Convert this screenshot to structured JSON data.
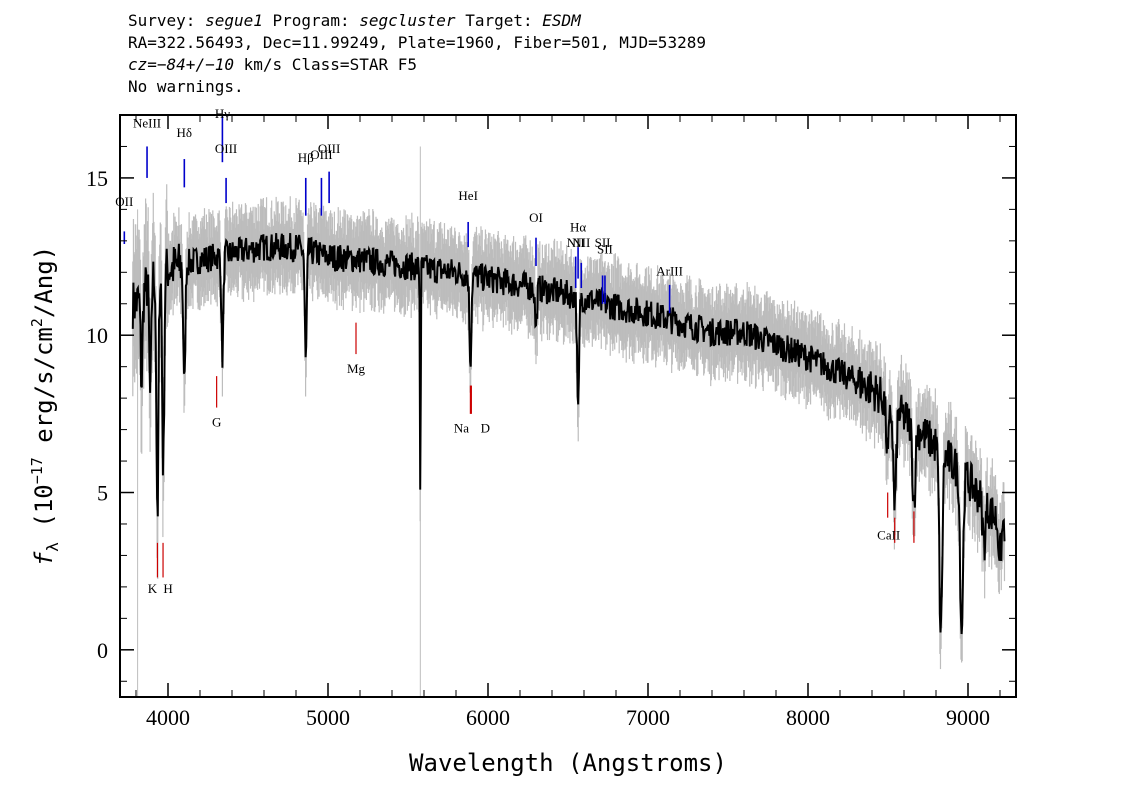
{
  "header": {
    "survey_key": "Survey:",
    "survey": "segue1",
    "program_key": "Program:",
    "program": "segcluster",
    "target_key": "Target:",
    "target": "ESDM",
    "line2": "RA=322.56493, Dec=11.99249, Plate=1960, Fiber=501, MJD=53289",
    "cz_key": "cz=",
    "cz": "−84+/−10",
    "cz_rest": " km/s Class=STAR F5",
    "line4": "No warnings."
  },
  "colors": {
    "flux": "#000000",
    "error": "#bdbdbd",
    "emission": "#0000cc",
    "absorption": "#cc0000"
  },
  "chart_data": {
    "type": "line",
    "xlabel": "Wavelength (Angstroms)",
    "ylabel": "f_λ (10^-17 erg/s/cm^2/Ang)",
    "xlim": [
      3700,
      9300
    ],
    "ylim": [
      -1.5,
      17.0
    ],
    "x_ticks": [
      4000,
      5000,
      6000,
      7000,
      8000,
      9000
    ],
    "y_ticks": [
      0,
      5,
      10,
      15
    ],
    "x_tick_labels": [
      "4000",
      "5000",
      "6000",
      "7000",
      "8000",
      "9000"
    ],
    "y_tick_labels": [
      "0",
      "5",
      "10",
      "15"
    ],
    "grid": false,
    "continuum_shape": [
      [
        3800,
        11.0
      ],
      [
        3900,
        11.8
      ],
      [
        4000,
        12.1
      ],
      [
        4200,
        12.4
      ],
      [
        4400,
        12.6
      ],
      [
        4600,
        12.8
      ],
      [
        4800,
        12.8
      ],
      [
        5000,
        12.5
      ],
      [
        5200,
        12.4
      ],
      [
        5500,
        12.2
      ],
      [
        5800,
        12.0
      ],
      [
        6000,
        11.8
      ],
      [
        6200,
        11.6
      ],
      [
        6500,
        11.3
      ],
      [
        6800,
        10.9
      ],
      [
        7000,
        10.7
      ],
      [
        7400,
        10.1
      ],
      [
        7600,
        10.1
      ],
      [
        8000,
        9.3
      ],
      [
        8400,
        8.3
      ],
      [
        8800,
        6.5
      ],
      [
        9000,
        5.4
      ],
      [
        9200,
        4.0
      ]
    ],
    "absorption_features": [
      [
        3835,
        8.5
      ],
      [
        3889,
        8.0
      ],
      [
        3934,
        3.7
      ],
      [
        3970,
        5.7
      ],
      [
        4102,
        8.3
      ],
      [
        4340,
        9.3
      ],
      [
        4861,
        9.1
      ],
      [
        5577,
        4.7
      ],
      [
        5890,
        9.2
      ],
      [
        6300,
        10.2
      ],
      [
        6563,
        7.4
      ],
      [
        8498,
        6.2
      ],
      [
        8542,
        4.5
      ],
      [
        8662,
        4.7
      ],
      [
        8830,
        0.4
      ],
      [
        8960,
        0.6
      ],
      [
        9100,
        3.4
      ],
      [
        9200,
        3.0
      ]
    ],
    "emission_lines": [
      {
        "label": "OII",
        "wave": 3727
      },
      {
        "label": "NeIII",
        "wave": 3869
      },
      {
        "label": "Hδ",
        "wave": 4102
      },
      {
        "label": "Hγ",
        "wave": 4340
      },
      {
        "label": "OIII",
        "wave": 4363
      },
      {
        "label": "Hβ",
        "wave": 4861
      },
      {
        "label": "OIII",
        "wave": 4959
      },
      {
        "label": "OIII",
        "wave": 5007
      },
      {
        "label": "HeI",
        "wave": 5876
      },
      {
        "label": "OI",
        "wave": 6300
      },
      {
        "label": "NII",
        "wave": 6548
      },
      {
        "label": "Hα",
        "wave": 6563
      },
      {
        "label": "NII",
        "wave": 6583
      },
      {
        "label": "SII",
        "wave": 6716
      },
      {
        "label": "SII",
        "wave": 6731
      },
      {
        "label": "ArIII",
        "wave": 7135
      }
    ],
    "absorption_lines": [
      {
        "label": "K",
        "wave": 3934
      },
      {
        "label": "H",
        "wave": 3969
      },
      {
        "label": "G",
        "wave": 4304
      },
      {
        "label": "Mg",
        "wave": 5175
      },
      {
        "label": "Na",
        "wave": 5890
      },
      {
        "label": "D",
        "wave": 5896
      },
      {
        "label": "CaII",
        "wave": 8498
      },
      {
        "label": "CaII",
        "wave": 8542
      },
      {
        "label": "CaII",
        "wave": 8662
      }
    ]
  }
}
